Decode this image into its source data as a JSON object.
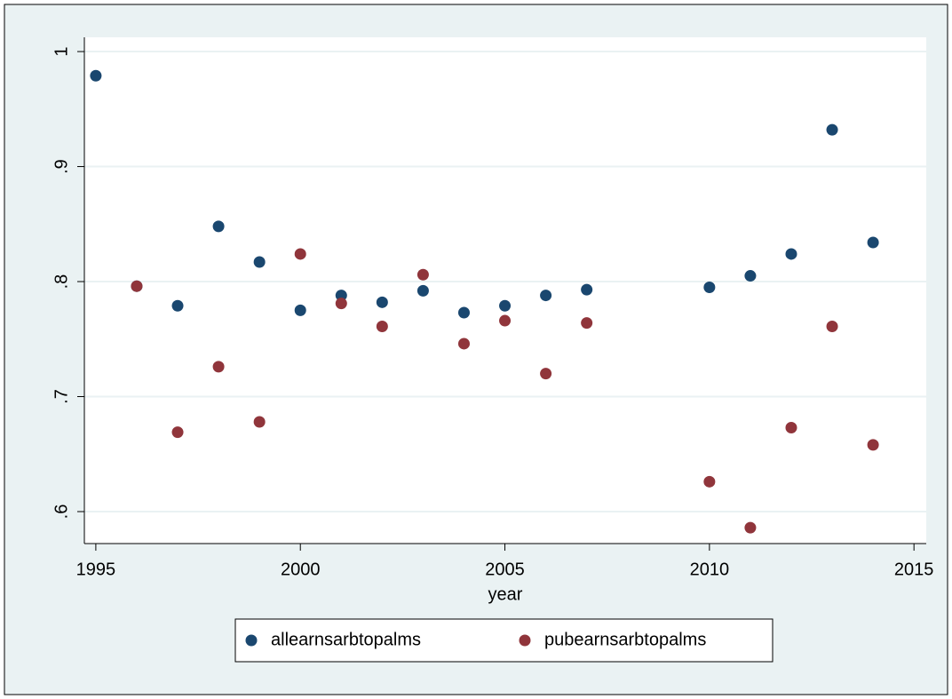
{
  "chart_data": {
    "type": "scatter",
    "x": [
      1995,
      1996,
      1997,
      1998,
      1999,
      2000,
      2001,
      2002,
      2003,
      2004,
      2005,
      2006,
      2007,
      2010,
      2011,
      2012,
      2013,
      2014
    ],
    "series": [
      {
        "name": "allearnsarbtopalms",
        "color": "#1a476f",
        "values": [
          0.979,
          0.796,
          0.779,
          0.848,
          0.817,
          0.775,
          0.788,
          0.782,
          0.792,
          0.773,
          0.779,
          0.788,
          0.793,
          0.795,
          0.805,
          0.824,
          0.932,
          0.834
        ]
      },
      {
        "name": "pubearnsarbtopalms",
        "color": "#90353b",
        "values": [
          null,
          0.796,
          0.669,
          0.726,
          0.678,
          0.824,
          0.781,
          0.761,
          0.806,
          0.746,
          0.766,
          0.72,
          0.764,
          0.626,
          0.586,
          0.673,
          0.761,
          0.658
        ]
      }
    ],
    "x_label": "year",
    "xlim": [
      1994.72,
      2015.3
    ],
    "xticks": [
      1995,
      2000,
      2005,
      2010,
      2015
    ],
    "ylim": [
      0.5722,
      1.0124
    ],
    "yticks": [
      {
        "value": 0.6,
        "label": ".6"
      },
      {
        "value": 0.7,
        "label": ".7"
      },
      {
        "value": 0.8,
        "label": ".8"
      },
      {
        "value": 0.9,
        "label": ".9"
      },
      {
        "value": 1,
        "label": "1"
      }
    ],
    "grid": true,
    "legend": "bottom"
  }
}
